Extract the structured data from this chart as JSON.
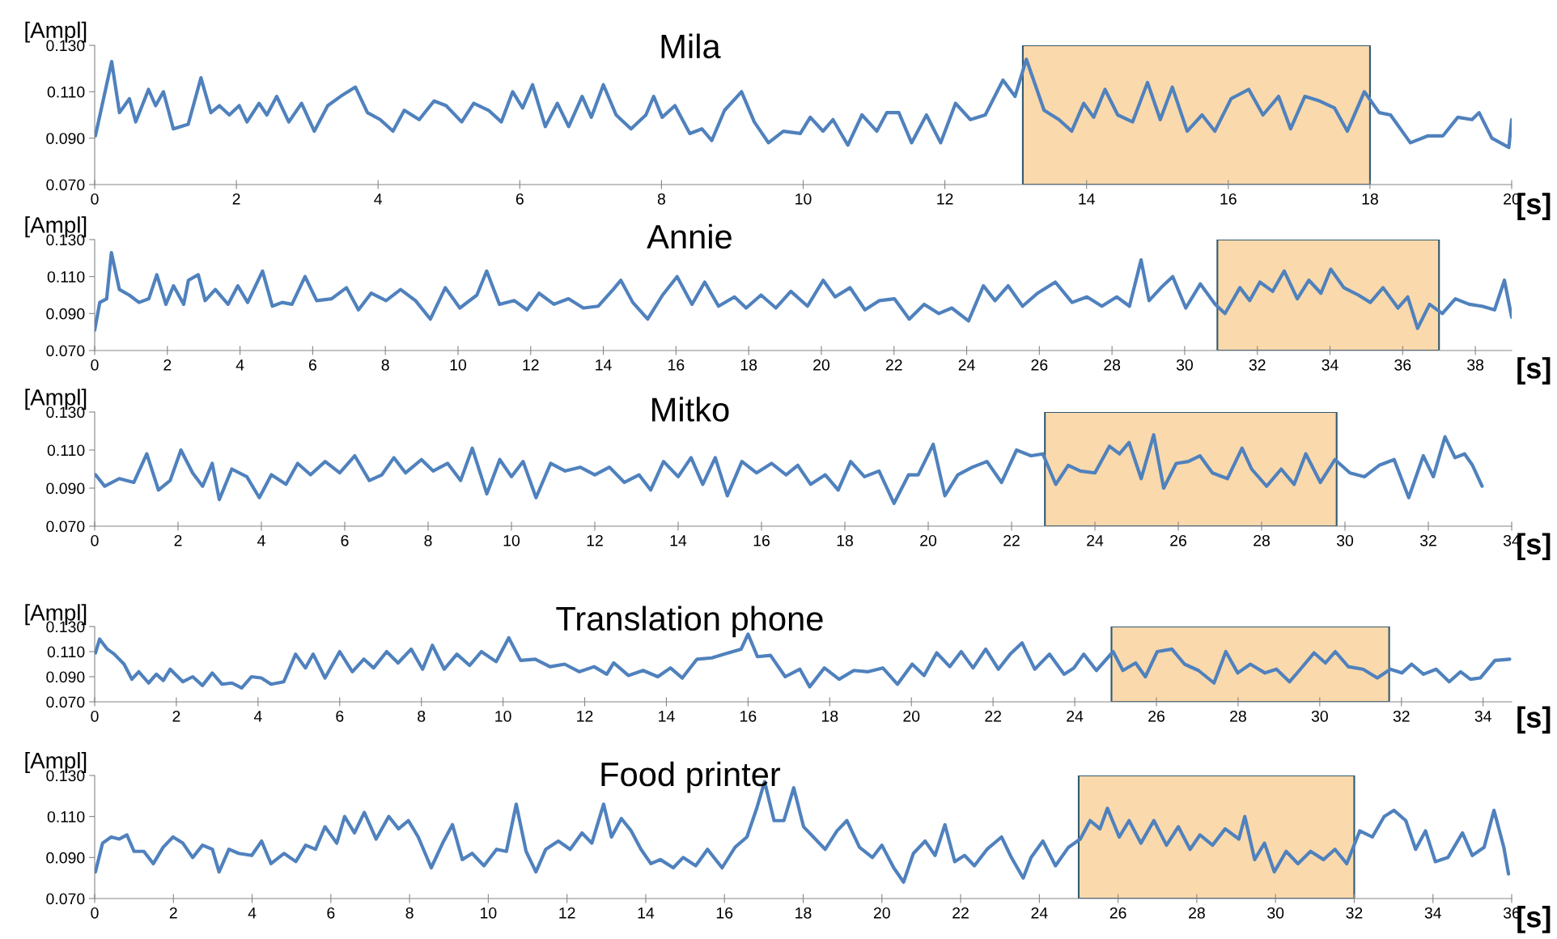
{
  "chart_data": [
    {
      "type": "line",
      "title": "Mila",
      "ylabel": "[Ampl]",
      "xlabel": "[s]",
      "xlim": [
        0,
        20
      ],
      "ylim": [
        0.07,
        0.13
      ],
      "xticks": [
        0,
        2,
        4,
        6,
        8,
        10,
        12,
        14,
        16,
        18,
        20
      ],
      "yticks": [
        {
          "value": 0.07,
          "label": "0.070"
        },
        {
          "value": 0.09,
          "label": "0.090"
        },
        {
          "value": 0.11,
          "label": "0.110"
        },
        {
          "value": 0.13,
          "label": "0.130"
        }
      ],
      "bands": [
        {
          "axis": "x",
          "from": 13.1,
          "to": 18,
          "color": "#fad9ac"
        }
      ],
      "series": [
        {
          "color": "#4f81bd",
          "x": [
            0.01,
            0.24,
            0.35,
            0.49,
            0.58,
            0.76,
            0.86,
            0.97,
            1.11,
            1.32,
            1.5,
            1.64,
            1.76,
            1.9,
            2.04,
            2.15,
            2.32,
            2.43,
            2.57,
            2.74,
            2.92,
            3.1,
            3.29,
            3.47,
            3.68,
            3.85,
            4.03,
            4.21,
            4.37,
            4.58,
            4.79,
            4.96,
            5.18,
            5.35,
            5.56,
            5.74,
            5.9,
            6.04,
            6.18,
            6.36,
            6.53,
            6.69,
            6.88,
            7.01,
            7.18,
            7.36,
            7.57,
            7.78,
            7.89,
            8.01,
            8.19,
            8.4,
            8.57,
            8.71,
            8.89,
            9.13,
            9.31,
            9.51,
            9.72,
            9.96,
            10.1,
            10.28,
            10.42,
            10.63,
            10.83,
            11.04,
            11.18,
            11.35,
            11.53,
            11.74,
            11.94,
            12.15,
            12.36,
            12.57,
            12.82,
            12.99,
            13.15,
            13.4,
            13.61,
            13.79,
            13.96,
            14.1,
            14.26,
            14.44,
            14.65,
            14.86,
            15.04,
            15.21,
            15.42,
            15.63,
            15.81,
            16.04,
            16.29,
            16.49,
            16.71,
            16.88,
            17.08,
            17.29,
            17.5,
            17.68,
            17.92,
            18.13,
            18.29,
            18.57,
            18.82,
            19.03,
            19.24,
            19.44,
            19.54,
            19.72,
            19.96,
            20.0
          ],
          "values": [
            0.091,
            0.123,
            0.101,
            0.107,
            0.097,
            0.111,
            0.104,
            0.11,
            0.094,
            0.096,
            0.116,
            0.101,
            0.104,
            0.1,
            0.104,
            0.097,
            0.105,
            0.1,
            0.108,
            0.097,
            0.105,
            0.093,
            0.104,
            0.108,
            0.112,
            0.101,
            0.098,
            0.093,
            0.102,
            0.098,
            0.106,
            0.104,
            0.097,
            0.105,
            0.102,
            0.097,
            0.11,
            0.103,
            0.113,
            0.095,
            0.105,
            0.095,
            0.108,
            0.099,
            0.113,
            0.1,
            0.094,
            0.1,
            0.108,
            0.099,
            0.104,
            0.092,
            0.094,
            0.089,
            0.102,
            0.11,
            0.097,
            0.088,
            0.093,
            0.092,
            0.099,
            0.093,
            0.098,
            0.087,
            0.1,
            0.093,
            0.101,
            0.101,
            0.088,
            0.1,
            0.088,
            0.105,
            0.098,
            0.1,
            0.115,
            0.108,
            0.124,
            0.102,
            0.098,
            0.093,
            0.105,
            0.099,
            0.111,
            0.1,
            0.097,
            0.114,
            0.098,
            0.112,
            0.093,
            0.1,
            0.093,
            0.107,
            0.111,
            0.1,
            0.108,
            0.094,
            0.108,
            0.106,
            0.103,
            0.093,
            0.11,
            0.101,
            0.1,
            0.088,
            0.091,
            0.091,
            0.099,
            0.098,
            0.101,
            0.09,
            0.086,
            0.098
          ]
        }
      ]
    },
    {
      "type": "line",
      "title": "Annie",
      "ylabel": "[Ampl]",
      "xlabel": "[s]",
      "xlim": [
        0,
        39
      ],
      "ylim": [
        0.07,
        0.13
      ],
      "xticks": [
        0,
        2,
        4,
        6,
        8,
        10,
        12,
        14,
        16,
        18,
        20,
        22,
        24,
        26,
        28,
        30,
        32,
        34,
        36,
        38
      ],
      "yticks": [
        {
          "value": 0.07,
          "label": "0.070"
        },
        {
          "value": 0.09,
          "label": "0.090"
        },
        {
          "value": 0.11,
          "label": "0.110"
        },
        {
          "value": 0.13,
          "label": "0.130"
        }
      ],
      "bands": [
        {
          "axis": "x",
          "from": 30.9,
          "to": 37,
          "color": "#fad9ac"
        }
      ],
      "series": [
        {
          "color": "#4f81bd",
          "x": [
            0,
            0.14,
            0.33,
            0.46,
            0.68,
            0.95,
            1.22,
            1.49,
            1.71,
            1.96,
            2.17,
            2.45,
            2.58,
            2.85,
            3.04,
            3.32,
            3.67,
            3.94,
            4.21,
            4.62,
            4.89,
            5.16,
            5.43,
            5.79,
            6.11,
            6.52,
            6.93,
            7.26,
            7.61,
            8.02,
            8.42,
            8.83,
            9.24,
            9.65,
            10.05,
            10.52,
            10.79,
            11.14,
            11.55,
            11.9,
            12.23,
            12.64,
            13.04,
            13.45,
            13.86,
            14.27,
            14.48,
            14.81,
            15.22,
            15.63,
            16.03,
            16.44,
            16.79,
            17.17,
            17.61,
            17.93,
            18.34,
            18.75,
            19.16,
            19.62,
            20.05,
            20.38,
            20.79,
            21.2,
            21.6,
            22.01,
            22.42,
            22.83,
            23.23,
            23.59,
            24.05,
            24.46,
            24.78,
            25.14,
            25.54,
            25.95,
            26.44,
            26.9,
            27.31,
            27.72,
            28.13,
            28.48,
            28.8,
            29.02,
            29.35,
            29.67,
            30.03,
            30.43,
            30.84,
            31.11,
            31.52,
            31.79,
            32.07,
            32.42,
            32.74,
            33.1,
            33.42,
            33.75,
            34.02,
            34.38,
            34.78,
            35.11,
            35.46,
            35.87,
            36.14,
            36.41,
            36.74,
            37.09,
            37.45,
            37.83,
            38.18,
            38.53,
            38.8,
            39.0
          ],
          "values": [
            0.081,
            0.096,
            0.098,
            0.123,
            0.103,
            0.1,
            0.096,
            0.098,
            0.111,
            0.095,
            0.105,
            0.095,
            0.108,
            0.111,
            0.097,
            0.103,
            0.095,
            0.105,
            0.096,
            0.113,
            0.094,
            0.096,
            0.095,
            0.11,
            0.097,
            0.098,
            0.104,
            0.092,
            0.101,
            0.097,
            0.103,
            0.097,
            0.087,
            0.104,
            0.093,
            0.1,
            0.113,
            0.095,
            0.097,
            0.092,
            0.101,
            0.095,
            0.098,
            0.093,
            0.094,
            0.103,
            0.108,
            0.096,
            0.087,
            0.1,
            0.11,
            0.095,
            0.107,
            0.094,
            0.099,
            0.093,
            0.1,
            0.093,
            0.102,
            0.094,
            0.108,
            0.099,
            0.104,
            0.092,
            0.097,
            0.098,
            0.087,
            0.095,
            0.09,
            0.093,
            0.086,
            0.105,
            0.097,
            0.105,
            0.094,
            0.101,
            0.107,
            0.096,
            0.099,
            0.094,
            0.099,
            0.094,
            0.119,
            0.097,
            0.104,
            0.11,
            0.093,
            0.106,
            0.095,
            0.09,
            0.104,
            0.097,
            0.107,
            0.102,
            0.113,
            0.098,
            0.108,
            0.101,
            0.114,
            0.104,
            0.1,
            0.096,
            0.104,
            0.093,
            0.099,
            0.082,
            0.095,
            0.09,
            0.098,
            0.095,
            0.094,
            0.092,
            0.108,
            0.088
          ]
        }
      ]
    },
    {
      "type": "line",
      "title": "Mitko",
      "ylabel": "[Ampl]",
      "xlabel": "[s]",
      "xlim": [
        0,
        34
      ],
      "ylim": [
        0.07,
        0.13
      ],
      "xticks": [
        0,
        2,
        4,
        6,
        8,
        10,
        12,
        14,
        16,
        18,
        20,
        22,
        24,
        26,
        28,
        30,
        32,
        34
      ],
      "yticks": [
        {
          "value": 0.07,
          "label": "0.070"
        },
        {
          "value": 0.09,
          "label": "0.090"
        },
        {
          "value": 0.11,
          "label": "0.110"
        },
        {
          "value": 0.13,
          "label": "0.130"
        }
      ],
      "bands": [
        {
          "axis": "x",
          "from": 22.8,
          "to": 29.8,
          "color": "#fad9ac"
        }
      ],
      "series": [
        {
          "color": "#4f81bd",
          "x": [
            0.02,
            0.24,
            0.59,
            0.94,
            1.25,
            1.53,
            1.81,
            2.07,
            2.35,
            2.59,
            2.82,
            2.99,
            3.29,
            3.65,
            3.95,
            4.24,
            4.59,
            4.87,
            5.18,
            5.53,
            5.88,
            6.24,
            6.59,
            6.89,
            7.18,
            7.46,
            7.84,
            8.12,
            8.47,
            8.78,
            9.06,
            9.41,
            9.72,
            10.0,
            10.28,
            10.59,
            10.94,
            11.29,
            11.65,
            12.0,
            12.35,
            12.71,
            13.06,
            13.34,
            13.65,
            14.0,
            14.31,
            14.59,
            14.89,
            15.18,
            15.53,
            15.88,
            16.24,
            16.59,
            16.87,
            17.18,
            17.53,
            17.84,
            18.14,
            18.47,
            18.82,
            19.18,
            19.53,
            19.76,
            20.12,
            20.4,
            20.71,
            21.06,
            21.41,
            21.76,
            22.12,
            22.47,
            22.75,
            23.06,
            23.36,
            23.65,
            24.0,
            24.35,
            24.59,
            24.82,
            25.11,
            25.41,
            25.65,
            25.95,
            26.24,
            26.52,
            26.82,
            27.18,
            27.53,
            27.76,
            28.12,
            28.47,
            28.78,
            29.06,
            29.41,
            29.76,
            30.12,
            30.47,
            30.82,
            31.18,
            31.53,
            31.88,
            32.12,
            32.4,
            32.64,
            32.87,
            33.06,
            33.29
          ],
          "values": [
            0.097,
            0.091,
            0.095,
            0.093,
            0.108,
            0.089,
            0.094,
            0.11,
            0.098,
            0.091,
            0.103,
            0.084,
            0.1,
            0.096,
            0.085,
            0.097,
            0.092,
            0.103,
            0.097,
            0.104,
            0.098,
            0.107,
            0.094,
            0.097,
            0.106,
            0.098,
            0.105,
            0.099,
            0.103,
            0.094,
            0.111,
            0.087,
            0.105,
            0.096,
            0.104,
            0.085,
            0.103,
            0.099,
            0.101,
            0.097,
            0.101,
            0.093,
            0.097,
            0.089,
            0.104,
            0.096,
            0.106,
            0.092,
            0.106,
            0.086,
            0.104,
            0.098,
            0.103,
            0.097,
            0.102,
            0.092,
            0.097,
            0.089,
            0.104,
            0.096,
            0.099,
            0.082,
            0.097,
            0.097,
            0.113,
            0.086,
            0.097,
            0.101,
            0.104,
            0.093,
            0.11,
            0.107,
            0.108,
            0.092,
            0.102,
            0.099,
            0.098,
            0.112,
            0.108,
            0.114,
            0.095,
            0.118,
            0.09,
            0.103,
            0.104,
            0.107,
            0.098,
            0.095,
            0.111,
            0.1,
            0.091,
            0.1,
            0.092,
            0.108,
            0.093,
            0.105,
            0.098,
            0.096,
            0.102,
            0.105,
            0.085,
            0.107,
            0.096,
            0.117,
            0.106,
            0.108,
            0.102,
            0.091
          ]
        }
      ]
    },
    {
      "type": "line",
      "title": "Translation phone",
      "ylabel": "[Ampl]",
      "xlabel": "[s]",
      "xlim": [
        0,
        34.7
      ],
      "ylim": [
        0.07,
        0.13
      ],
      "xticks": [
        0,
        2,
        4,
        6,
        8,
        10,
        12,
        14,
        16,
        18,
        20,
        22,
        24,
        26,
        28,
        30,
        32,
        34
      ],
      "yticks": [
        {
          "value": 0.07,
          "label": "0.070"
        },
        {
          "value": 0.09,
          "label": "0.090"
        },
        {
          "value": 0.11,
          "label": "0.110"
        },
        {
          "value": 0.13,
          "label": "0.130"
        }
      ],
      "bands": [
        {
          "axis": "x",
          "from": 24.9,
          "to": 31.7,
          "color": "#fad9ac"
        }
      ],
      "series": [
        {
          "color": "#4f81bd",
          "x": [
            0.02,
            0.12,
            0.31,
            0.48,
            0.72,
            0.91,
            1.08,
            1.32,
            1.51,
            1.68,
            1.85,
            2.16,
            2.4,
            2.64,
            2.88,
            3.12,
            3.36,
            3.6,
            3.84,
            4.08,
            4.32,
            4.63,
            4.92,
            5.16,
            5.35,
            5.64,
            6.0,
            6.31,
            6.59,
            6.83,
            7.15,
            7.43,
            7.75,
            8.03,
            8.27,
            8.56,
            8.87,
            9.18,
            9.47,
            9.83,
            10.14,
            10.43,
            10.79,
            11.15,
            11.51,
            11.87,
            12.23,
            12.54,
            12.71,
            13.07,
            13.43,
            13.79,
            14.1,
            14.39,
            14.75,
            15.11,
            15.42,
            15.83,
            16.0,
            16.23,
            16.55,
            16.91,
            17.27,
            17.51,
            17.87,
            18.23,
            18.59,
            18.94,
            19.3,
            19.66,
            20.02,
            20.31,
            20.62,
            20.94,
            21.22,
            21.51,
            21.82,
            22.13,
            22.42,
            22.71,
            23.02,
            23.38,
            23.74,
            23.98,
            24.22,
            24.53,
            24.94,
            25.18,
            25.49,
            25.73,
            26.02,
            26.38,
            26.69,
            27.03,
            27.41,
            27.7,
            27.99,
            28.3,
            28.66,
            28.94,
            29.26,
            29.5,
            29.86,
            30.14,
            30.38,
            30.7,
            31.06,
            31.41,
            31.73,
            32.01,
            32.25,
            32.54,
            32.85,
            33.17,
            33.45,
            33.69,
            33.93,
            34.29,
            34.65
          ],
          "values": [
            0.109,
            0.12,
            0.112,
            0.108,
            0.1,
            0.088,
            0.094,
            0.085,
            0.092,
            0.087,
            0.096,
            0.086,
            0.09,
            0.083,
            0.093,
            0.084,
            0.085,
            0.081,
            0.09,
            0.089,
            0.084,
            0.086,
            0.108,
            0.097,
            0.108,
            0.089,
            0.11,
            0.094,
            0.104,
            0.097,
            0.11,
            0.101,
            0.112,
            0.096,
            0.115,
            0.096,
            0.108,
            0.099,
            0.11,
            0.102,
            0.121,
            0.103,
            0.104,
            0.098,
            0.1,
            0.094,
            0.098,
            0.092,
            0.101,
            0.091,
            0.095,
            0.09,
            0.097,
            0.089,
            0.104,
            0.105,
            0.108,
            0.112,
            0.124,
            0.106,
            0.107,
            0.09,
            0.096,
            0.082,
            0.097,
            0.088,
            0.095,
            0.094,
            0.097,
            0.084,
            0.1,
            0.091,
            0.109,
            0.098,
            0.11,
            0.097,
            0.112,
            0.096,
            0.108,
            0.117,
            0.096,
            0.108,
            0.092,
            0.097,
            0.108,
            0.095,
            0.11,
            0.095,
            0.101,
            0.09,
            0.11,
            0.112,
            0.1,
            0.095,
            0.085,
            0.11,
            0.093,
            0.1,
            0.093,
            0.096,
            0.086,
            0.095,
            0.109,
            0.101,
            0.11,
            0.098,
            0.096,
            0.089,
            0.096,
            0.093,
            0.1,
            0.092,
            0.096,
            0.086,
            0.094,
            0.088,
            0.089,
            0.103,
            0.104
          ]
        }
      ]
    },
    {
      "type": "line",
      "title": "Food printer",
      "ylabel": "[Ampl]",
      "xlabel": "[s]",
      "xlim": [
        0,
        36
      ],
      "ylim": [
        0.07,
        0.13
      ],
      "xticks": [
        0,
        2,
        4,
        6,
        8,
        10,
        12,
        14,
        16,
        18,
        20,
        22,
        24,
        26,
        28,
        30,
        32,
        34,
        36
      ],
      "yticks": [
        {
          "value": 0.07,
          "label": "0.070"
        },
        {
          "value": 0.09,
          "label": "0.090"
        },
        {
          "value": 0.11,
          "label": "0.110"
        },
        {
          "value": 0.13,
          "label": "0.130"
        }
      ],
      "bands": [
        {
          "axis": "x",
          "from": 25,
          "to": 32,
          "color": "#fad9ac"
        }
      ],
      "series": [
        {
          "color": "#4f81bd",
          "x": [
            0.02,
            0.2,
            0.42,
            0.62,
            0.82,
            1.0,
            1.25,
            1.49,
            1.74,
            1.99,
            2.24,
            2.49,
            2.74,
            2.99,
            3.16,
            3.41,
            3.66,
            3.99,
            4.24,
            4.48,
            4.81,
            5.11,
            5.36,
            5.61,
            5.85,
            6.15,
            6.35,
            6.6,
            6.85,
            7.15,
            7.47,
            7.72,
            7.97,
            8.22,
            8.55,
            8.84,
            9.09,
            9.34,
            9.59,
            9.89,
            10.21,
            10.46,
            10.71,
            10.96,
            11.21,
            11.46,
            11.78,
            12.08,
            12.38,
            12.63,
            12.93,
            13.13,
            13.38,
            13.63,
            13.88,
            14.13,
            14.37,
            14.7,
            14.95,
            15.27,
            15.57,
            15.94,
            16.27,
            16.57,
            16.82,
            17.02,
            17.26,
            17.51,
            17.76,
            18.01,
            18.26,
            18.56,
            18.86,
            19.11,
            19.43,
            19.76,
            20.0,
            20.3,
            20.55,
            20.8,
            21.1,
            21.35,
            21.6,
            21.85,
            22.1,
            22.35,
            22.67,
            23.04,
            23.29,
            23.59,
            23.79,
            24.09,
            24.41,
            24.74,
            25.04,
            25.29,
            25.54,
            25.73,
            26.03,
            26.28,
            26.58,
            26.91,
            27.23,
            27.53,
            27.83,
            28.08,
            28.4,
            28.72,
            29.07,
            29.22,
            29.47,
            29.72,
            29.97,
            30.27,
            30.57,
            30.89,
            31.22,
            31.51,
            31.81,
            32.14,
            32.46,
            32.76,
            33.01,
            33.31,
            33.56,
            33.81,
            34.06,
            34.38,
            34.75,
            35.0,
            35.3,
            35.55,
            35.8,
            35.92
          ],
          "values": [
            0.083,
            0.097,
            0.1,
            0.099,
            0.101,
            0.093,
            0.093,
            0.087,
            0.095,
            0.1,
            0.097,
            0.09,
            0.096,
            0.094,
            0.083,
            0.094,
            0.092,
            0.091,
            0.098,
            0.087,
            0.092,
            0.088,
            0.096,
            0.094,
            0.105,
            0.097,
            0.11,
            0.102,
            0.112,
            0.099,
            0.11,
            0.104,
            0.108,
            0.1,
            0.085,
            0.097,
            0.106,
            0.089,
            0.092,
            0.086,
            0.094,
            0.093,
            0.116,
            0.093,
            0.083,
            0.094,
            0.098,
            0.094,
            0.102,
            0.097,
            0.116,
            0.1,
            0.109,
            0.103,
            0.094,
            0.087,
            0.089,
            0.085,
            0.09,
            0.086,
            0.094,
            0.085,
            0.095,
            0.1,
            0.114,
            0.127,
            0.108,
            0.108,
            0.124,
            0.105,
            0.1,
            0.094,
            0.103,
            0.108,
            0.095,
            0.09,
            0.096,
            0.085,
            0.078,
            0.092,
            0.098,
            0.091,
            0.106,
            0.088,
            0.091,
            0.086,
            0.094,
            0.1,
            0.09,
            0.08,
            0.09,
            0.098,
            0.086,
            0.095,
            0.099,
            0.108,
            0.104,
            0.114,
            0.1,
            0.108,
            0.097,
            0.108,
            0.096,
            0.105,
            0.094,
            0.101,
            0.096,
            0.104,
            0.099,
            0.11,
            0.089,
            0.097,
            0.083,
            0.093,
            0.087,
            0.093,
            0.089,
            0.094,
            0.087,
            0.103,
            0.1,
            0.11,
            0.113,
            0.108,
            0.094,
            0.103,
            0.088,
            0.09,
            0.102,
            0.091,
            0.095,
            0.113,
            0.095,
            0.082
          ]
        }
      ]
    }
  ]
}
